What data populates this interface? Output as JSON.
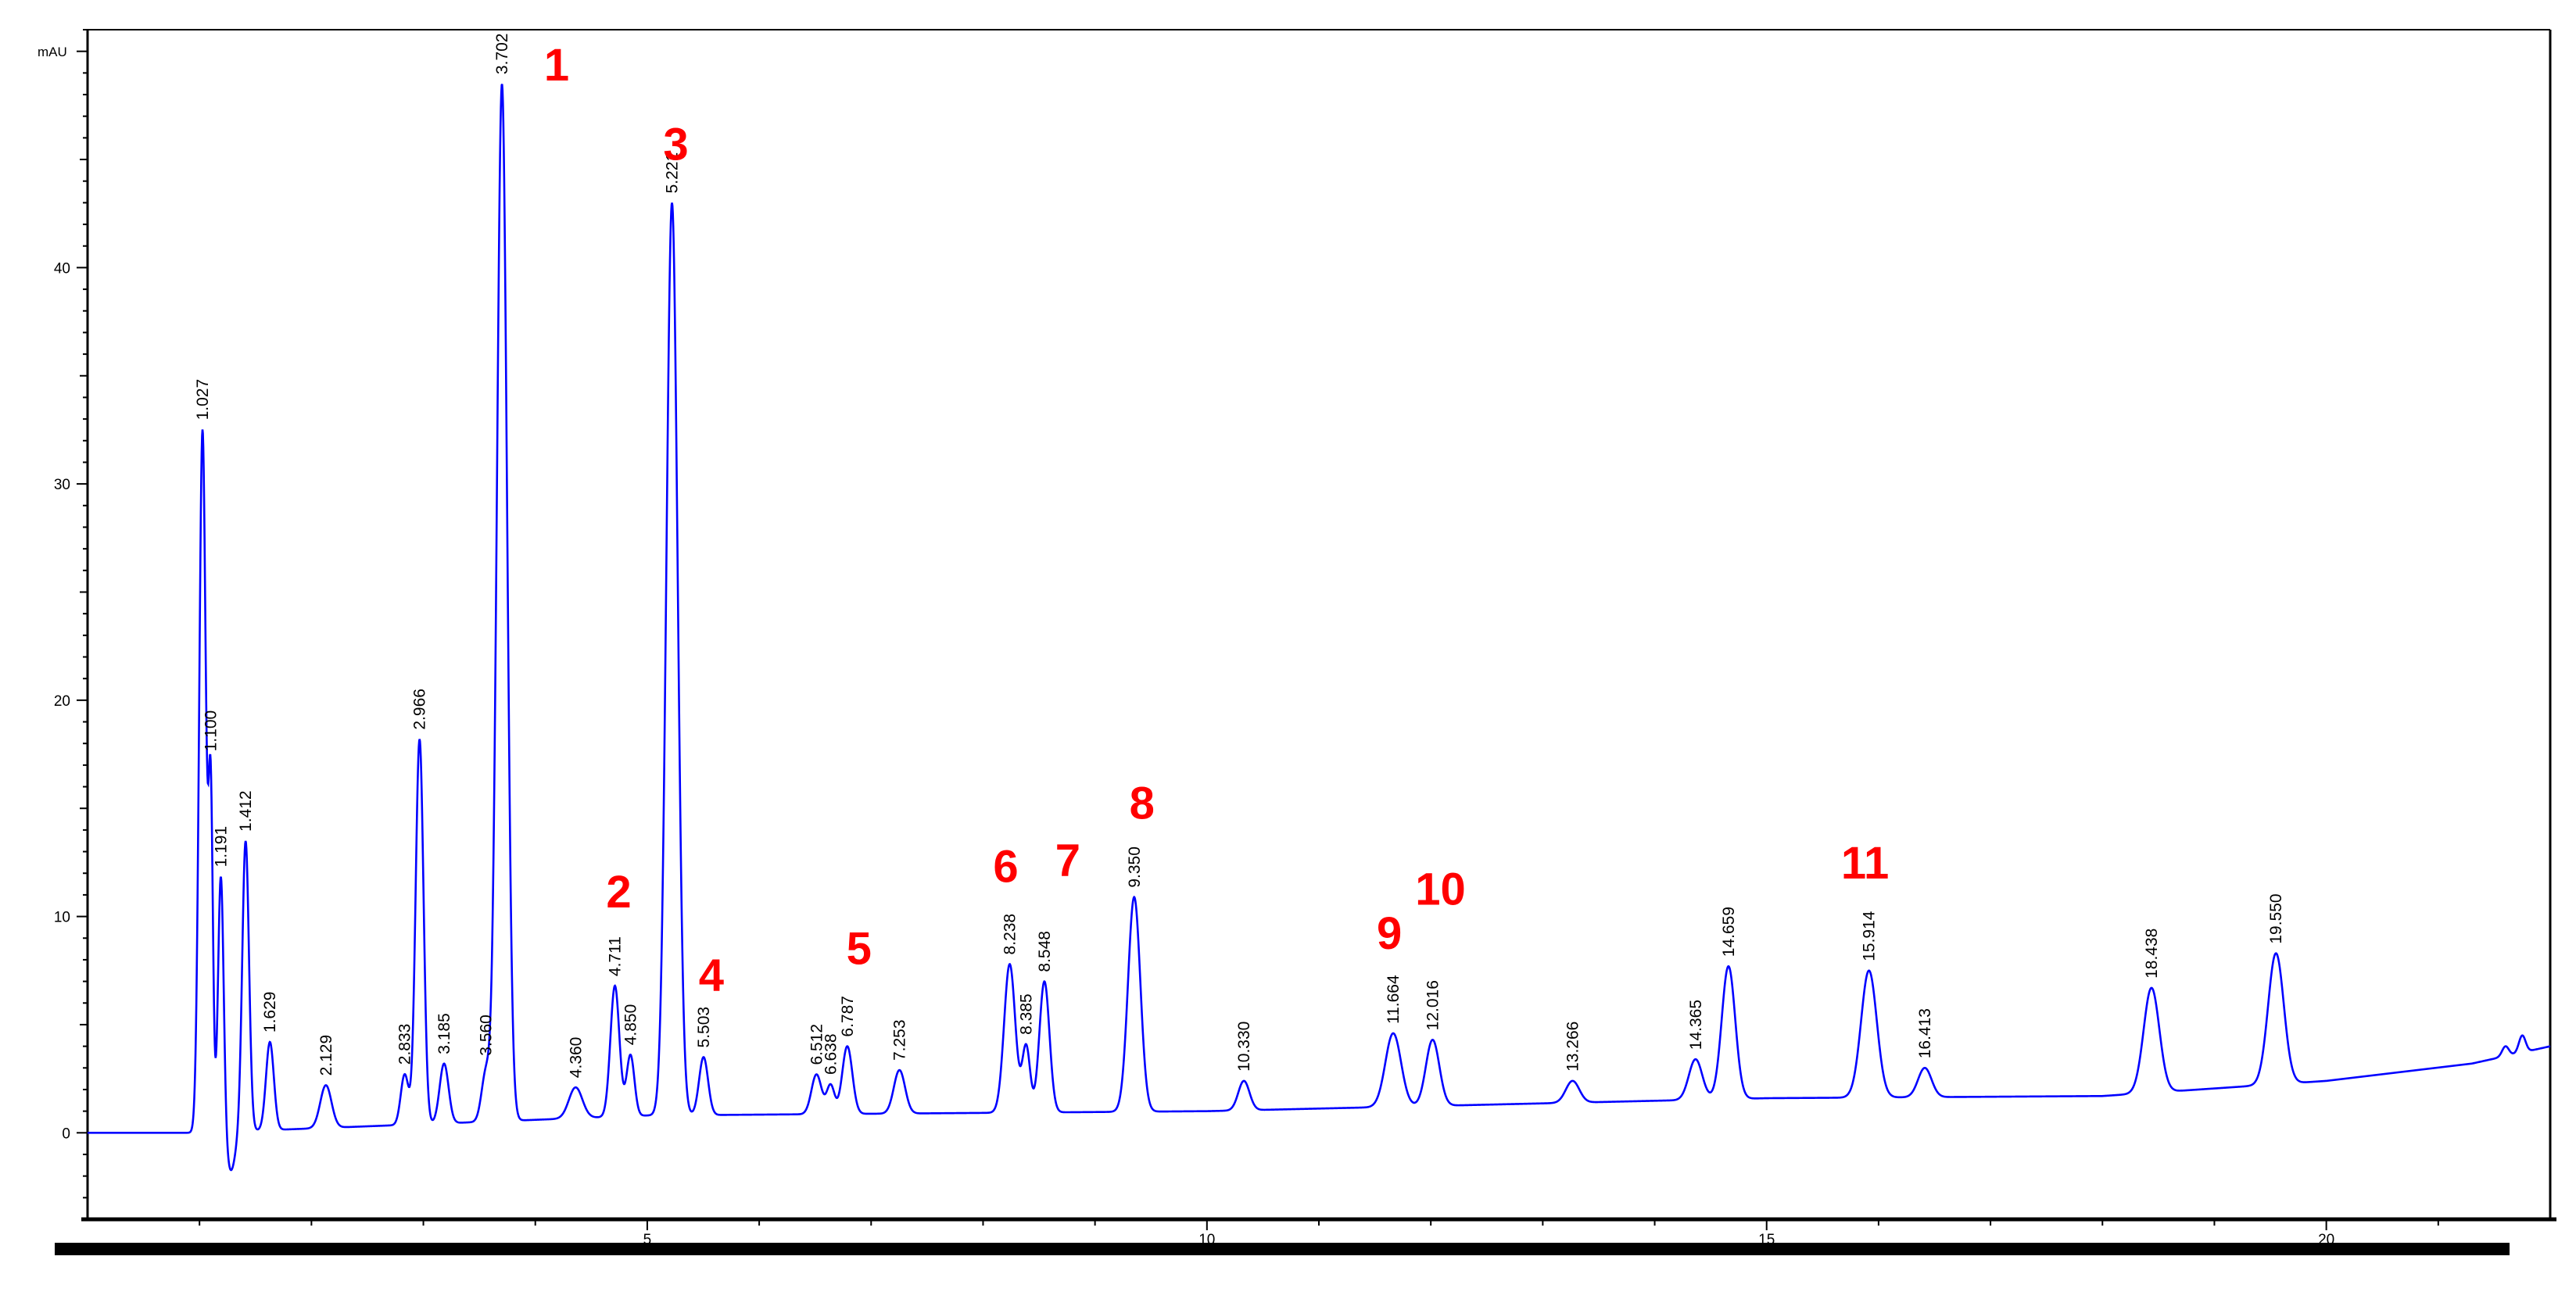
{
  "chart_data": {
    "type": "line",
    "ylabel": "mAU",
    "xlabel": "",
    "title": "",
    "xlim": [
      0,
      22
    ],
    "ylim": [
      -4,
      51
    ],
    "xticks": [
      5,
      10,
      15,
      20
    ],
    "yticks": [
      0,
      10,
      20,
      30,
      40
    ],
    "baseline": {
      "x": [
        0,
        1.0,
        5,
        10,
        15,
        18,
        20,
        21.3,
        22
      ],
      "y": [
        0,
        0,
        0.8,
        1.0,
        1.6,
        1.7,
        2.4,
        3.2,
        4.0
      ]
    },
    "peaks": [
      {
        "rt": 1.027,
        "height": 32.5,
        "w": 0.03,
        "label": "1.027"
      },
      {
        "rt": 1.1,
        "height": 15.5,
        "w": 0.02,
        "label": "1.100"
      },
      {
        "rt": 1.191,
        "height": 12.0,
        "w": 0.025,
        "label": "1.191"
      },
      {
        "rt": 1.412,
        "height": 13.5,
        "w": 0.03,
        "label": "1.412"
      },
      {
        "rt": 1.629,
        "height": 4.2,
        "w": 0.035,
        "label": "1.629"
      },
      {
        "rt": 2.129,
        "height": 2.2,
        "w": 0.05,
        "label": "2.129"
      },
      {
        "rt": 2.833,
        "height": 2.7,
        "w": 0.035,
        "label": "2.833"
      },
      {
        "rt": 2.966,
        "height": 18.2,
        "w": 0.035,
        "label": "2.966"
      },
      {
        "rt": 3.185,
        "height": 3.2,
        "w": 0.04,
        "label": "3.185"
      },
      {
        "rt": 3.56,
        "height": 2.8,
        "w": 0.04,
        "label": "3.560"
      },
      {
        "rt": 3.702,
        "height": 48.5,
        "w": 0.045,
        "label": "3.702"
      },
      {
        "rt": 4.36,
        "height": 2.1,
        "w": 0.06,
        "label": "4.360"
      },
      {
        "rt": 4.711,
        "height": 6.8,
        "w": 0.04,
        "label": "4.711"
      },
      {
        "rt": 4.85,
        "height": 3.6,
        "w": 0.035,
        "label": "4.850"
      },
      {
        "rt": 5.221,
        "height": 43.0,
        "w": 0.05,
        "label": "5.221"
      },
      {
        "rt": 5.503,
        "height": 3.5,
        "w": 0.04,
        "label": "5.503"
      },
      {
        "rt": 6.512,
        "height": 2.7,
        "w": 0.045,
        "label": "6.512"
      },
      {
        "rt": 6.638,
        "height": 2.2,
        "w": 0.035,
        "label": "6.638"
      },
      {
        "rt": 6.787,
        "height": 4.0,
        "w": 0.045,
        "label": "6.787"
      },
      {
        "rt": 7.253,
        "height": 2.9,
        "w": 0.05,
        "label": "7.253"
      },
      {
        "rt": 8.238,
        "height": 7.8,
        "w": 0.05,
        "label": "8.238"
      },
      {
        "rt": 8.385,
        "height": 4.0,
        "w": 0.035,
        "label": "8.385"
      },
      {
        "rt": 8.548,
        "height": 7.0,
        "w": 0.045,
        "label": "8.548"
      },
      {
        "rt": 9.35,
        "height": 10.9,
        "w": 0.055,
        "label": "9.350"
      },
      {
        "rt": 10.33,
        "height": 2.4,
        "w": 0.05,
        "label": "10.330"
      },
      {
        "rt": 11.664,
        "height": 4.6,
        "w": 0.07,
        "label": "11.664"
      },
      {
        "rt": 12.016,
        "height": 4.3,
        "w": 0.06,
        "label": "12.016"
      },
      {
        "rt": 13.266,
        "height": 2.4,
        "w": 0.06,
        "label": "13.266"
      },
      {
        "rt": 14.365,
        "height": 3.4,
        "w": 0.06,
        "label": "14.365"
      },
      {
        "rt": 14.659,
        "height": 7.7,
        "w": 0.06,
        "label": "14.659"
      },
      {
        "rt": 15.914,
        "height": 7.5,
        "w": 0.07,
        "label": "15.914"
      },
      {
        "rt": 16.413,
        "height": 3.0,
        "w": 0.06,
        "label": "16.413"
      },
      {
        "rt": 18.438,
        "height": 6.7,
        "w": 0.07,
        "label": "18.438"
      },
      {
        "rt": 19.55,
        "height": 8.3,
        "w": 0.07,
        "label": "19.550"
      },
      {
        "rt": 21.6,
        "height": 4.0,
        "w": 0.03,
        "label": ""
      },
      {
        "rt": 21.75,
        "height": 4.5,
        "w": 0.03,
        "label": ""
      }
    ],
    "annotations": [
      {
        "text": "1",
        "rt": 3.702
      },
      {
        "text": "2",
        "rt": 4.711
      },
      {
        "text": "3",
        "rt": 5.221
      },
      {
        "text": "4",
        "rt": 5.503
      },
      {
        "text": "5",
        "rt": 6.787
      },
      {
        "text": "6",
        "rt": 8.238
      },
      {
        "text": "7",
        "rt": 8.548
      },
      {
        "text": "8",
        "rt": 9.35
      },
      {
        "text": "9",
        "rt": 11.664
      },
      {
        "text": "10",
        "rt": 12.016
      },
      {
        "text": "11",
        "rt": 15.914
      }
    ],
    "line_color": "#0000ff",
    "annotation_color": "#ff0000",
    "grid": false
  }
}
